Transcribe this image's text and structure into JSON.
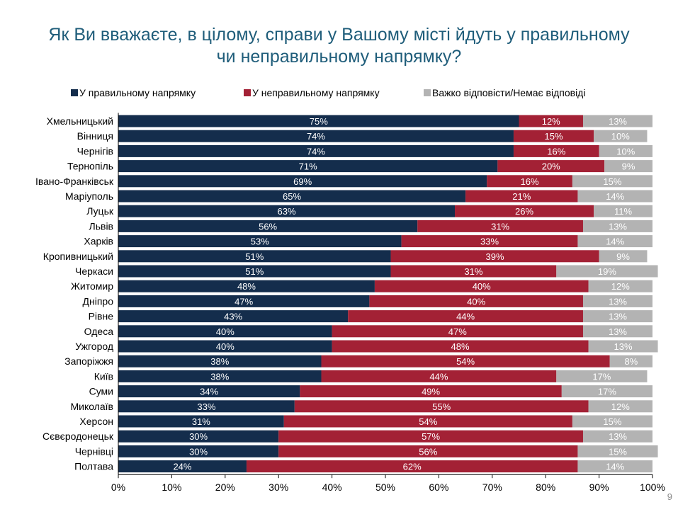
{
  "title_line1": "Як Ви вважаєте, в цілому, справи у Вашому місті йдуть у правильному",
  "title_line2": "чи неправильному напрямку?",
  "page_number": "9",
  "colors": {
    "right": "#142d4c",
    "wrong": "#a32135",
    "dk": "#b3b3b3",
    "axis": "#000000",
    "label_text": "#000000",
    "bar_text": "#ffffff"
  },
  "chart_data": {
    "type": "bar",
    "orientation": "horizontal",
    "stacked": true,
    "legend": [
      {
        "key": "right",
        "label": "У правильному напрямку"
      },
      {
        "key": "wrong",
        "label": "У неправильному напрямку"
      },
      {
        "key": "dk",
        "label": "Важко відповісти/Немає відповіді"
      }
    ],
    "categories": [
      "Хмельницький",
      "Вінниця",
      "Чернігів",
      "Тернопіль",
      "Івано-Франківськ",
      "Маріуполь",
      "Луцьк",
      "Львів",
      "Харків",
      "Кропивницький",
      "Черкаси",
      "Житомир",
      "Дніпро",
      "Рівне",
      "Одеса",
      "Ужгород",
      "Запоріжжя",
      "Київ",
      "Суми",
      "Миколаїв",
      "Херсон",
      "Сєвєродонецьк",
      "Чернівці",
      "Полтава"
    ],
    "series": [
      {
        "key": "right",
        "name": "У правильному напрямку",
        "values": [
          75,
          74,
          74,
          71,
          69,
          65,
          63,
          56,
          53,
          51,
          51,
          48,
          47,
          43,
          40,
          40,
          38,
          38,
          34,
          33,
          31,
          30,
          30,
          24
        ]
      },
      {
        "key": "wrong",
        "name": "У неправильному напрямку",
        "values": [
          12,
          15,
          16,
          20,
          16,
          21,
          26,
          31,
          33,
          39,
          31,
          40,
          40,
          44,
          47,
          48,
          54,
          44,
          49,
          55,
          54,
          57,
          56,
          62
        ]
      },
      {
        "key": "dk",
        "name": "Важко відповісти/Немає відповіді",
        "values": [
          13,
          10,
          10,
          9,
          15,
          14,
          11,
          13,
          14,
          9,
          19,
          12,
          13,
          13,
          13,
          13,
          8,
          17,
          17,
          12,
          15,
          13,
          15,
          14
        ]
      }
    ],
    "xlim": [
      0,
      100
    ],
    "x_ticks": [
      0,
      10,
      20,
      30,
      40,
      50,
      60,
      70,
      80,
      90,
      100
    ],
    "x_tick_suffix": "%",
    "value_suffix": "%"
  }
}
